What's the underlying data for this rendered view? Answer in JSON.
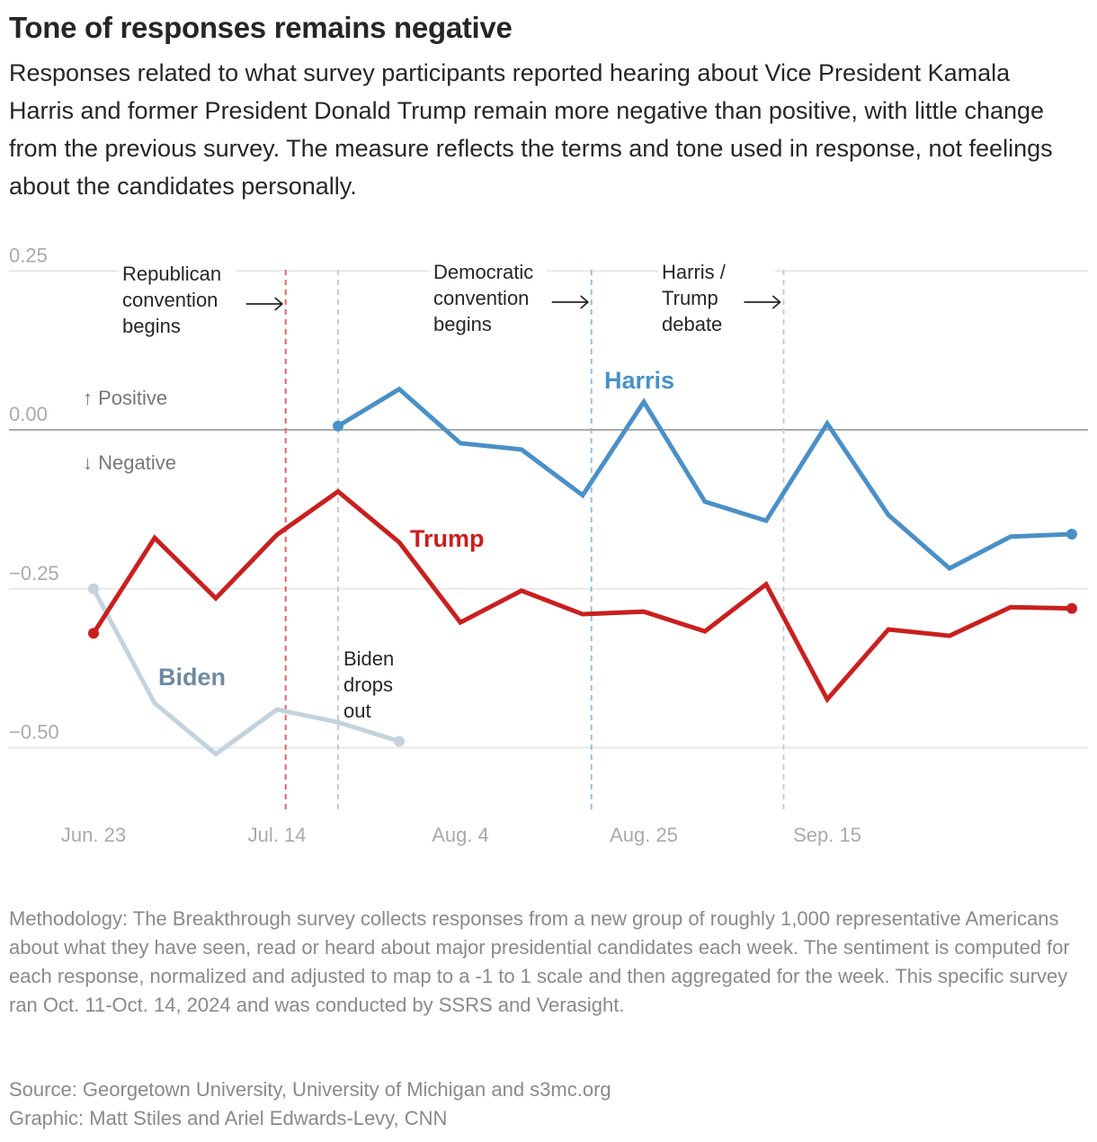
{
  "title": "Tone of responses remains negative",
  "subtitle": "Responses related to what survey participants reported hearing about Vice President Kamala Harris and former President Donald Trump remain more negative than positive, with little change from the previous survey. The measure reflects the terms and tone used in response, not feelings about the candidates personally.",
  "methodology": "Methodology: The Breakthrough survey collects responses from a new group of roughly 1,000 representative Americans about what they have seen, read or heard about major presidential candidates each week. The sentiment is computed for each response, normalized and adjusted to map to a -1 to 1 scale and then aggregated for the week. This specific survey ran Oct. 11-Oct. 14, 2024 and was conducted by SSRS and Verasight.",
  "source": "Source: Georgetown University, University of Michigan and s3mc.org",
  "credit": "Graphic: Matt Stiles and Ariel Edwards-Levy, CNN",
  "chart_data": {
    "type": "line",
    "ylim": [
      -0.6,
      0.25
    ],
    "yticks": [
      {
        "value": 0.25,
        "label": "0.25"
      },
      {
        "value": 0,
        "label": "0.00"
      },
      {
        "value": -0.25,
        "label": "−0.25"
      },
      {
        "value": -0.5,
        "label": "−0.50"
      }
    ],
    "xticks": [
      {
        "date": "2024-06-23",
        "label": "Jun. 23"
      },
      {
        "date": "2024-07-14",
        "label": "Jul. 14"
      },
      {
        "date": "2024-08-04",
        "label": "Aug. 4"
      },
      {
        "date": "2024-08-25",
        "label": "Aug. 25"
      },
      {
        "date": "2024-09-15",
        "label": "Sep. 15"
      }
    ],
    "direction_labels": {
      "positive": "↑ Positive",
      "negative": "↓ Negative"
    },
    "grid": true,
    "series": [
      {
        "name": "Biden",
        "color": "#c3d3de",
        "label_color": "#6f8ba0",
        "x": [
          "2024-06-23",
          "2024-06-30",
          "2024-07-07",
          "2024-07-14",
          "2024-07-21",
          "2024-07-28"
        ],
        "values": [
          -0.25,
          -0.43,
          -0.51,
          -0.44,
          -0.46,
          -0.49
        ]
      },
      {
        "name": "Trump",
        "color": "#c8201f",
        "label_color": "#c8201f",
        "x": [
          "2024-06-23",
          "2024-06-30",
          "2024-07-07",
          "2024-07-14",
          "2024-07-21",
          "2024-07-28",
          "2024-08-04",
          "2024-08-11",
          "2024-08-18",
          "2024-08-25",
          "2024-09-01",
          "2024-09-08",
          "2024-09-15",
          "2024-09-22",
          "2024-09-29",
          "2024-10-06",
          "2024-10-13"
        ],
        "values": [
          -0.32,
          -0.17,
          -0.265,
          -0.165,
          -0.097,
          -0.177,
          -0.303,
          -0.253,
          -0.29,
          -0.286,
          -0.317,
          -0.243,
          -0.424,
          -0.314,
          -0.324,
          -0.279,
          -0.281
        ]
      },
      {
        "name": "Harris",
        "color": "#4a90c6",
        "label_color": "#4a90c6",
        "x": [
          "2024-07-21",
          "2024-07-28",
          "2024-08-04",
          "2024-08-11",
          "2024-08-18",
          "2024-08-25",
          "2024-09-01",
          "2024-09-08",
          "2024-09-15",
          "2024-09-22",
          "2024-09-29",
          "2024-10-06",
          "2024-10-13"
        ],
        "values": [
          0.006,
          0.064,
          -0.021,
          -0.031,
          -0.103,
          0.044,
          -0.113,
          -0.143,
          0.01,
          -0.134,
          -0.218,
          -0.168,
          -0.164
        ]
      }
    ],
    "events": [
      {
        "date": "2024-07-15",
        "lines": [
          "Republican",
          "convention",
          "begins"
        ],
        "color": "#e06666",
        "arrow": true
      },
      {
        "date": "2024-07-21",
        "lines": [
          "Biden",
          "drops",
          "out"
        ],
        "color": "#cccccc",
        "arrow": false
      },
      {
        "date": "2024-08-19",
        "lines": [
          "Democratic",
          "convention",
          "begins"
        ],
        "color": "#8fc0e6",
        "arrow": true
      },
      {
        "date": "2024-09-10",
        "lines": [
          "Harris /",
          "Trump",
          "debate"
        ],
        "color": "#cccccc",
        "arrow": true
      }
    ]
  }
}
